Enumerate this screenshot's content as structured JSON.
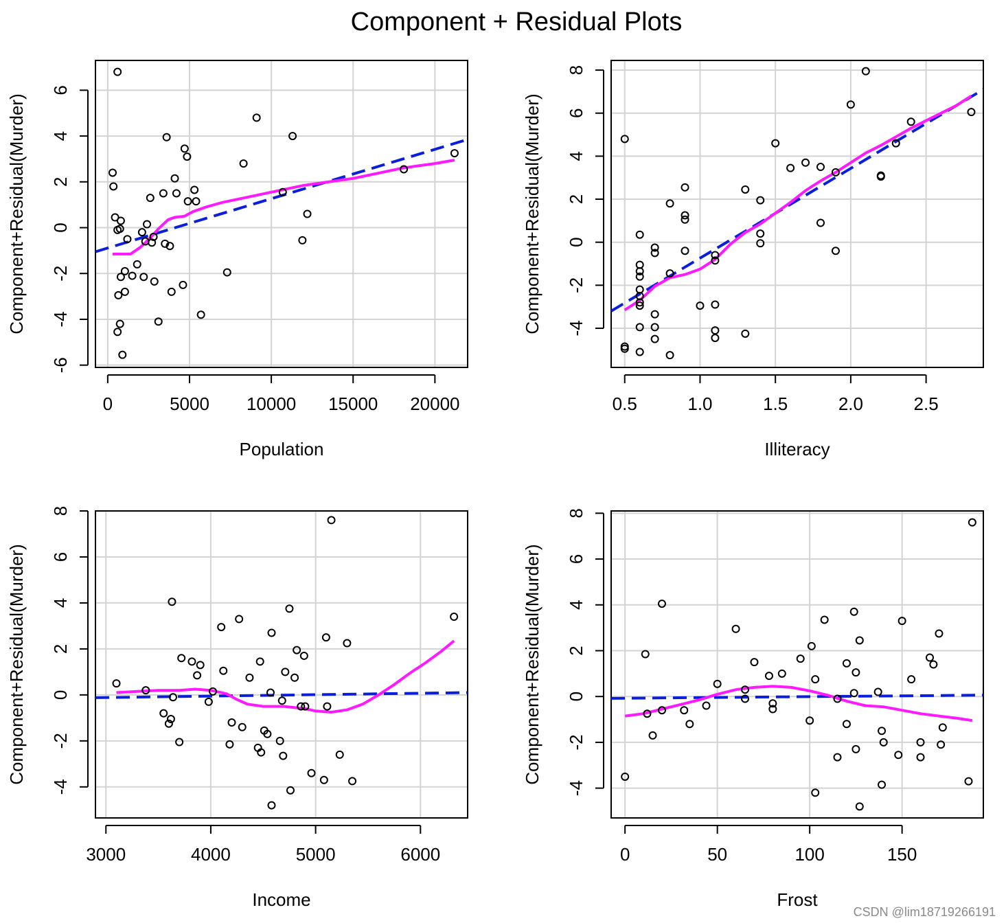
{
  "figure": {
    "title": "Component + Residual Plots",
    "watermark": "CSDN @lim18719266191"
  },
  "colors": {
    "fit_line": "#0a1fdc",
    "smooth_line": "#ff19ff",
    "grid": "#d3d3d3",
    "points": "#000000"
  },
  "chart_data": [
    {
      "type": "scatter",
      "id": "population",
      "title": "",
      "xlabel": "Population",
      "ylabel": "Component+Residual(Murder)",
      "xlim": [
        -750,
        22000
      ],
      "ylim": [
        -6.1,
        7.3
      ],
      "xticks": [
        0,
        5000,
        10000,
        15000,
        20000
      ],
      "xtick_labels": [
        "0",
        "5000",
        "10000",
        "15000",
        "20000"
      ],
      "yticks": [
        -6,
        -4,
        -2,
        0,
        2,
        4,
        6
      ],
      "ytick_labels": [
        "-6",
        "-4",
        "-2",
        "0",
        "2",
        "4",
        "6"
      ],
      "points": [
        [
          600,
          6.8
        ],
        [
          300,
          2.4
        ],
        [
          350,
          1.8
        ],
        [
          450,
          0.45
        ],
        [
          600,
          -0.1
        ],
        [
          750,
          -0.05
        ],
        [
          800,
          0.3
        ],
        [
          650,
          -2.95
        ],
        [
          800,
          -2.15
        ],
        [
          1050,
          -1.9
        ],
        [
          1050,
          -2.8
        ],
        [
          750,
          -4.2
        ],
        [
          600,
          -4.55
        ],
        [
          900,
          -5.55
        ],
        [
          1200,
          -0.5
        ],
        [
          1500,
          -2.1
        ],
        [
          1800,
          -1.6
        ],
        [
          2100,
          -0.2
        ],
        [
          2200,
          -2.15
        ],
        [
          2300,
          -0.6
        ],
        [
          2400,
          0.15
        ],
        [
          2600,
          1.3
        ],
        [
          2700,
          -0.65
        ],
        [
          2800,
          -0.4
        ],
        [
          2850,
          -2.35
        ],
        [
          3100,
          -4.1
        ],
        [
          3400,
          1.5
        ],
        [
          3500,
          -0.7
        ],
        [
          3600,
          3.95
        ],
        [
          3800,
          -0.8
        ],
        [
          3900,
          -2.8
        ],
        [
          4100,
          2.15
        ],
        [
          4200,
          1.5
        ],
        [
          4600,
          -2.5
        ],
        [
          4700,
          3.45
        ],
        [
          4850,
          3.1
        ],
        [
          4900,
          1.15
        ],
        [
          5300,
          1.65
        ],
        [
          5400,
          1.15
        ],
        [
          5700,
          -3.8
        ],
        [
          7300,
          -1.95
        ],
        [
          8300,
          2.8
        ],
        [
          9100,
          4.8
        ],
        [
          10700,
          1.55
        ],
        [
          11300,
          4.0
        ],
        [
          11900,
          -0.55
        ],
        [
          12200,
          0.6
        ],
        [
          18100,
          2.55
        ],
        [
          21200,
          3.25
        ]
      ],
      "fit_line": [
        [
          -750,
          -1.05
        ],
        [
          22000,
          3.85
        ]
      ],
      "smooth_line": [
        [
          300,
          -1.15
        ],
        [
          1400,
          -1.15
        ],
        [
          2000,
          -0.85
        ],
        [
          2600,
          -0.45
        ],
        [
          3100,
          -0.05
        ],
        [
          3700,
          0.35
        ],
        [
          4100,
          0.45
        ],
        [
          4700,
          0.5
        ],
        [
          5200,
          0.7
        ],
        [
          6000,
          0.9
        ],
        [
          7000,
          1.1
        ],
        [
          8000,
          1.25
        ],
        [
          9000,
          1.4
        ],
        [
          10000,
          1.55
        ],
        [
          11000,
          1.7
        ],
        [
          12000,
          1.85
        ],
        [
          13000,
          1.95
        ],
        [
          14000,
          2.05
        ],
        [
          15000,
          2.15
        ],
        [
          16000,
          2.3
        ],
        [
          17000,
          2.45
        ],
        [
          18000,
          2.6
        ],
        [
          19000,
          2.7
        ],
        [
          20000,
          2.8
        ],
        [
          21200,
          2.95
        ]
      ]
    },
    {
      "type": "scatter",
      "id": "illiteracy",
      "title": "",
      "xlabel": "Illiteracy",
      "ylabel": "Component+Residual(Murder)",
      "xlim": [
        0.41,
        2.88
      ],
      "ylim": [
        -5.82,
        8.45
      ],
      "xticks": [
        0.5,
        1.0,
        1.5,
        2.0,
        2.5
      ],
      "xtick_labels": [
        "0.5",
        "1.0",
        "1.5",
        "2.0",
        "2.5"
      ],
      "yticks": [
        -4,
        -2,
        0,
        2,
        4,
        6,
        8
      ],
      "ytick_labels": [
        "-4",
        "-2",
        "0",
        "2",
        "4",
        "6",
        "8"
      ],
      "points": [
        [
          0.5,
          4.8
        ],
        [
          0.5,
          -4.85
        ],
        [
          0.5,
          -4.95
        ],
        [
          0.6,
          0.35
        ],
        [
          0.6,
          -1.05
        ],
        [
          0.6,
          -1.35
        ],
        [
          0.6,
          -1.6
        ],
        [
          0.6,
          -2.2
        ],
        [
          0.6,
          -2.5
        ],
        [
          0.6,
          -2.8
        ],
        [
          0.6,
          -2.95
        ],
        [
          0.6,
          -3.95
        ],
        [
          0.6,
          -5.1
        ],
        [
          0.7,
          -0.25
        ],
        [
          0.7,
          -0.5
        ],
        [
          0.7,
          -3.35
        ],
        [
          0.7,
          -3.95
        ],
        [
          0.7,
          -4.5
        ],
        [
          0.8,
          1.8
        ],
        [
          0.8,
          -1.45
        ],
        [
          0.8,
          -5.25
        ],
        [
          0.9,
          2.55
        ],
        [
          0.9,
          1.25
        ],
        [
          0.9,
          1.05
        ],
        [
          0.9,
          -0.4
        ],
        [
          1.0,
          -2.95
        ],
        [
          1.1,
          -0.6
        ],
        [
          1.1,
          -0.85
        ],
        [
          1.1,
          -2.9
        ],
        [
          1.1,
          -4.1
        ],
        [
          1.1,
          -4.45
        ],
        [
          1.3,
          2.45
        ],
        [
          1.3,
          -4.25
        ],
        [
          1.4,
          1.95
        ],
        [
          1.4,
          0.4
        ],
        [
          1.4,
          -0.05
        ],
        [
          1.5,
          4.6
        ],
        [
          1.6,
          3.45
        ],
        [
          1.7,
          3.7
        ],
        [
          1.8,
          3.5
        ],
        [
          1.8,
          0.9
        ],
        [
          1.9,
          3.25
        ],
        [
          1.9,
          -0.4
        ],
        [
          2.0,
          6.4
        ],
        [
          2.1,
          7.95
        ],
        [
          2.2,
          3.1
        ],
        [
          2.2,
          3.05
        ],
        [
          2.3,
          4.6
        ],
        [
          2.4,
          5.6
        ],
        [
          2.8,
          6.05
        ]
      ],
      "fit_line": [
        [
          0.41,
          -3.2
        ],
        [
          2.88,
          7.1
        ]
      ],
      "smooth_line": [
        [
          0.5,
          -3.15
        ],
        [
          0.6,
          -2.7
        ],
        [
          0.7,
          -2.05
        ],
        [
          0.8,
          -1.65
        ],
        [
          0.9,
          -1.5
        ],
        [
          1.0,
          -1.25
        ],
        [
          1.1,
          -0.8
        ],
        [
          1.2,
          -0.1
        ],
        [
          1.3,
          0.45
        ],
        [
          1.4,
          0.85
        ],
        [
          1.5,
          1.35
        ],
        [
          1.6,
          1.85
        ],
        [
          1.7,
          2.4
        ],
        [
          1.8,
          2.85
        ],
        [
          1.9,
          3.25
        ],
        [
          2.0,
          3.7
        ],
        [
          2.1,
          4.15
        ],
        [
          2.2,
          4.5
        ],
        [
          2.3,
          4.9
        ],
        [
          2.4,
          5.3
        ],
        [
          2.5,
          5.65
        ],
        [
          2.6,
          6.0
        ],
        [
          2.7,
          6.35
        ],
        [
          2.8,
          6.8
        ]
      ]
    },
    {
      "type": "scatter",
      "id": "income",
      "title": "",
      "xlabel": "Income",
      "ylabel": "Component+Residual(Murder)",
      "xlim": [
        2900,
        6450
      ],
      "ylim": [
        -5.35,
        8.0
      ],
      "xticks": [
        3000,
        4000,
        5000,
        6000
      ],
      "xtick_labels": [
        "3000",
        "4000",
        "5000",
        "6000"
      ],
      "yticks": [
        -4,
        -2,
        0,
        2,
        4,
        6,
        8
      ],
      "ytick_labels": [
        "-4",
        "-2",
        "0",
        "2",
        "4",
        "6",
        "8"
      ],
      "points": [
        [
          3100,
          0.5
        ],
        [
          3380,
          0.2
        ],
        [
          3550,
          -0.8
        ],
        [
          3600,
          -1.25
        ],
        [
          3620,
          -1.05
        ],
        [
          3630,
          4.05
        ],
        [
          3640,
          -0.1
        ],
        [
          3700,
          -2.05
        ],
        [
          3720,
          1.6
        ],
        [
          3820,
          1.45
        ],
        [
          3870,
          0.85
        ],
        [
          3900,
          1.3
        ],
        [
          3980,
          -0.3
        ],
        [
          4020,
          0.15
        ],
        [
          4100,
          2.95
        ],
        [
          4120,
          1.05
        ],
        [
          4180,
          -2.15
        ],
        [
          4200,
          -1.2
        ],
        [
          4270,
          3.3
        ],
        [
          4300,
          -1.4
        ],
        [
          4370,
          0.75
        ],
        [
          4450,
          -2.3
        ],
        [
          4470,
          1.45
        ],
        [
          4480,
          -2.5
        ],
        [
          4510,
          -1.55
        ],
        [
          4540,
          -1.7
        ],
        [
          4570,
          0.1
        ],
        [
          4580,
          -4.8
        ],
        [
          4580,
          2.7
        ],
        [
          4660,
          -2.0
        ],
        [
          4680,
          -0.25
        ],
        [
          4690,
          -2.65
        ],
        [
          4710,
          1.0
        ],
        [
          4750,
          3.75
        ],
        [
          4760,
          -4.15
        ],
        [
          4800,
          0.75
        ],
        [
          4820,
          1.95
        ],
        [
          4860,
          -0.5
        ],
        [
          4890,
          1.7
        ],
        [
          4900,
          -0.5
        ],
        [
          4960,
          -3.4
        ],
        [
          5080,
          -3.7
        ],
        [
          5100,
          2.5
        ],
        [
          5110,
          -0.5
        ],
        [
          5150,
          7.6
        ],
        [
          5230,
          -2.6
        ],
        [
          5300,
          2.25
        ],
        [
          5350,
          -3.75
        ],
        [
          6320,
          3.4
        ]
      ],
      "fit_line": [
        [
          2900,
          -0.12
        ],
        [
          6450,
          0.1
        ]
      ],
      "smooth_line": [
        [
          3100,
          0.1
        ],
        [
          3300,
          0.15
        ],
        [
          3500,
          0.2
        ],
        [
          3700,
          0.2
        ],
        [
          3850,
          0.25
        ],
        [
          4000,
          0.2
        ],
        [
          4150,
          0.05
        ],
        [
          4250,
          -0.2
        ],
        [
          4350,
          -0.4
        ],
        [
          4500,
          -0.5
        ],
        [
          4700,
          -0.5
        ],
        [
          4900,
          -0.6
        ],
        [
          5000,
          -0.7
        ],
        [
          5150,
          -0.75
        ],
        [
          5300,
          -0.65
        ],
        [
          5450,
          -0.4
        ],
        [
          5600,
          0.0
        ],
        [
          5750,
          0.45
        ],
        [
          5900,
          0.95
        ],
        [
          6050,
          1.4
        ],
        [
          6200,
          1.9
        ],
        [
          6320,
          2.35
        ]
      ]
    },
    {
      "type": "scatter",
      "id": "frost",
      "title": "",
      "xlabel": "Frost",
      "ylabel": "Component+Residual(Murder)",
      "xlim": [
        -7.5,
        194
      ],
      "ylim": [
        -5.3,
        8.1
      ],
      "xticks": [
        0,
        50,
        100,
        150
      ],
      "xtick_labels": [
        "0",
        "50",
        "100",
        "150"
      ],
      "yticks": [
        -4,
        -2,
        0,
        2,
        4,
        6,
        8
      ],
      "ytick_labels": [
        "-4",
        "-2",
        "0",
        "2",
        "4",
        "6",
        "8"
      ],
      "points": [
        [
          0,
          -3.5
        ],
        [
          11,
          1.85
        ],
        [
          12,
          -0.75
        ],
        [
          15,
          -1.7
        ],
        [
          20,
          -0.6
        ],
        [
          20,
          4.05
        ],
        [
          32,
          -0.6
        ],
        [
          35,
          -1.2
        ],
        [
          44,
          -0.4
        ],
        [
          50,
          0.55
        ],
        [
          60,
          2.95
        ],
        [
          65,
          -0.1
        ],
        [
          65,
          0.3
        ],
        [
          70,
          1.5
        ],
        [
          78,
          0.9
        ],
        [
          80,
          -0.3
        ],
        [
          80,
          -0.55
        ],
        [
          85,
          1.0
        ],
        [
          95,
          1.65
        ],
        [
          100,
          -1.05
        ],
        [
          101,
          2.2
        ],
        [
          103,
          -4.2
        ],
        [
          103,
          0.75
        ],
        [
          108,
          3.35
        ],
        [
          115,
          -0.1
        ],
        [
          115,
          -2.65
        ],
        [
          120,
          -1.2
        ],
        [
          120,
          1.45
        ],
        [
          124,
          0.15
        ],
        [
          124,
          3.7
        ],
        [
          125,
          1.05
        ],
        [
          125,
          -2.3
        ],
        [
          127,
          2.45
        ],
        [
          127,
          -4.8
        ],
        [
          137,
          0.2
        ],
        [
          139,
          -1.5
        ],
        [
          140,
          -2.0
        ],
        [
          139,
          -3.85
        ],
        [
          148,
          -2.55
        ],
        [
          150,
          3.3
        ],
        [
          155,
          0.75
        ],
        [
          160,
          -2.0
        ],
        [
          160,
          -2.65
        ],
        [
          165,
          1.7
        ],
        [
          167,
          1.4
        ],
        [
          170,
          2.75
        ],
        [
          171,
          -2.1
        ],
        [
          172,
          -1.35
        ],
        [
          186,
          -3.7
        ],
        [
          188,
          7.6
        ]
      ],
      "fit_line": [
        [
          -7.5,
          -0.08
        ],
        [
          194,
          0.06
        ]
      ],
      "smooth_line": [
        [
          0,
          -0.85
        ],
        [
          10,
          -0.75
        ],
        [
          20,
          -0.55
        ],
        [
          30,
          -0.35
        ],
        [
          40,
          -0.15
        ],
        [
          50,
          0.1
        ],
        [
          60,
          0.3
        ],
        [
          70,
          0.4
        ],
        [
          80,
          0.45
        ],
        [
          90,
          0.4
        ],
        [
          100,
          0.25
        ],
        [
          110,
          0.05
        ],
        [
          120,
          -0.2
        ],
        [
          130,
          -0.4
        ],
        [
          140,
          -0.45
        ],
        [
          150,
          -0.6
        ],
        [
          160,
          -0.75
        ],
        [
          170,
          -0.85
        ],
        [
          180,
          -0.95
        ],
        [
          188,
          -1.05
        ]
      ]
    }
  ]
}
